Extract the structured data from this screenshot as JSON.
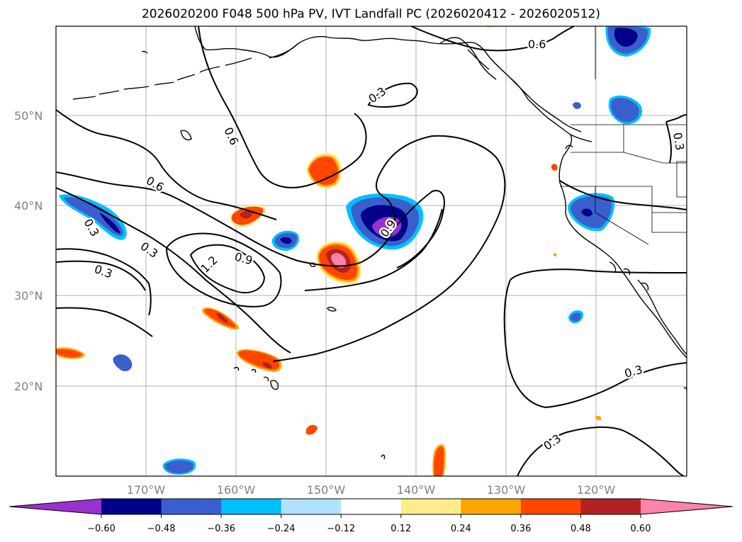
{
  "title": "2026020200 F048 500 hPa PV, IVT Landfall PC (2026020412 - 2026020512)",
  "map": {
    "lat_labels": [
      "50°N",
      "40°N",
      "30°N",
      "20°N"
    ],
    "lon_labels": [
      "170°W",
      "160°W",
      "150°W",
      "140°W",
      "130°W",
      "120°W"
    ],
    "contour_labels": [
      "0.6",
      "0.3",
      "0.6",
      "0.6",
      "0.3",
      "0.3",
      "0.3",
      "1.2",
      "0.9",
      "0.9",
      "0.3",
      "0.3",
      "0.3"
    ]
  },
  "colorbar": {
    "ticks": [
      "−0.60",
      "−0.48",
      "−0.36",
      "−0.24",
      "−0.12",
      "0.12",
      "0.24",
      "0.36",
      "0.48",
      "0.60"
    ],
    "colors": [
      "#9932cc",
      "#00008b",
      "#3a5fcd",
      "#00bfff",
      "#b0e2ff",
      "#ffffff",
      "#ffec8b",
      "#ffa500",
      "#ff4500",
      "#b22222",
      "#ff82ab"
    ]
  },
  "colors": {
    "gridline": "#b0b0b0",
    "coastline": "#000000",
    "contour": "#000000"
  }
}
